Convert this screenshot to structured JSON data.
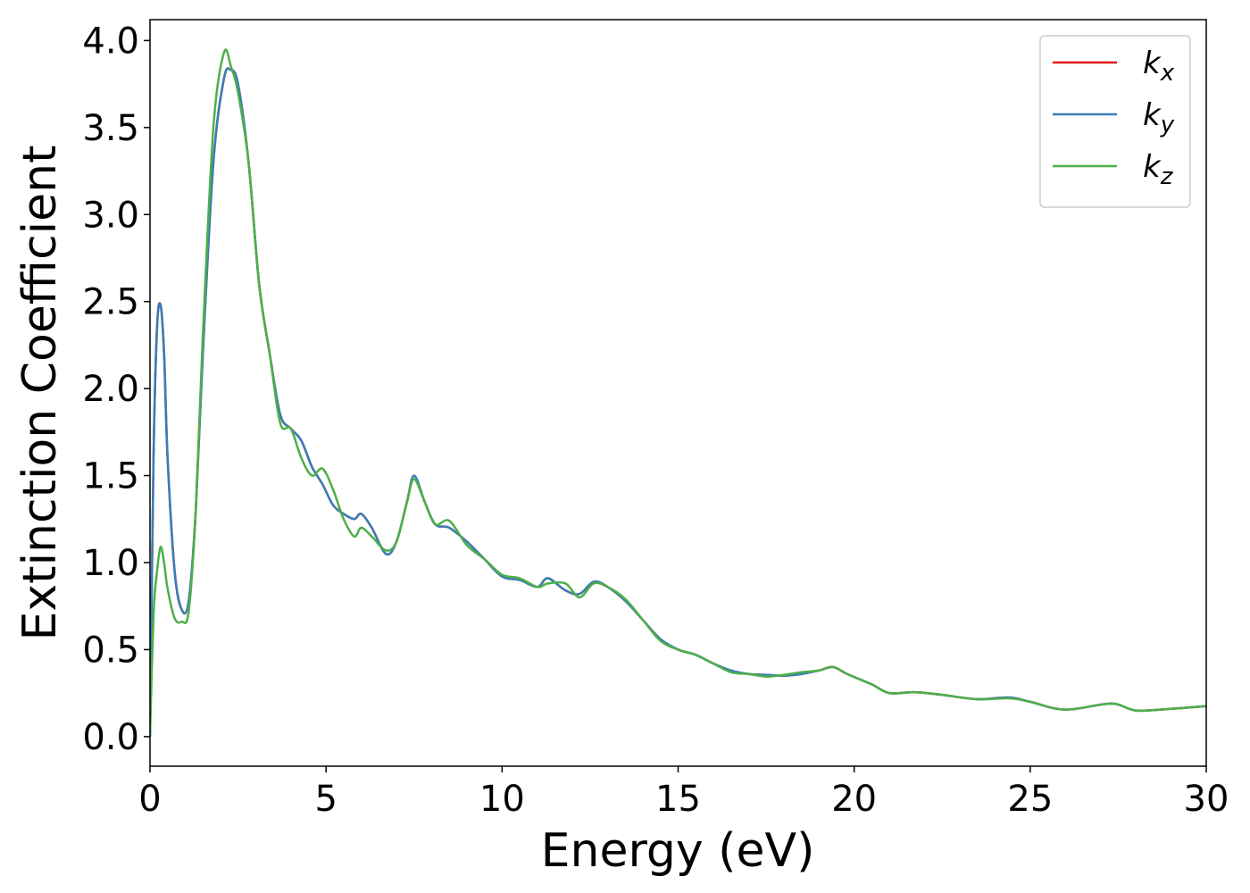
{
  "chart_data": {
    "type": "line",
    "xlabel": "Energy (eV)",
    "ylabel": "Extinction Coefficient",
    "xlim": [
      0,
      30
    ],
    "ylim": [
      -0.17,
      4.12
    ],
    "xticks": [
      0,
      5,
      10,
      15,
      20,
      25,
      30
    ],
    "yticks": [
      {
        "value": 0,
        "label": "0.0"
      },
      {
        "value": 0.5,
        "label": "0.5"
      },
      {
        "value": 1,
        "label": "1.0"
      },
      {
        "value": 1.5,
        "label": "1.5"
      },
      {
        "value": 2,
        "label": "2.0"
      },
      {
        "value": 2.5,
        "label": "2.5"
      },
      {
        "value": 3,
        "label": "3.0"
      },
      {
        "value": 3.5,
        "label": "3.5"
      },
      {
        "value": 4,
        "label": "4.0"
      }
    ],
    "grid": false,
    "legend": "upper right",
    "x": [
      0,
      0.1,
      0.2,
      0.3,
      0.4,
      0.5,
      0.7,
      0.9,
      1.1,
      1.3,
      1.5,
      1.8,
      2.1,
      2.3,
      2.5,
      2.8,
      3.1,
      3.4,
      3.7,
      4.0,
      4.3,
      4.6,
      4.9,
      5.2,
      5.5,
      5.8,
      6.0,
      6.3,
      6.7,
      7.0,
      7.3,
      7.5,
      7.8,
      8.1,
      8.5,
      9.0,
      9.5,
      10.0,
      10.5,
      11.0,
      11.3,
      11.8,
      12.2,
      12.6,
      13.0,
      13.5,
      14.0,
      14.5,
      15.0,
      15.5,
      16.0,
      16.5,
      17.0,
      17.5,
      18.0,
      18.5,
      19.0,
      19.4,
      19.8,
      20.5,
      21.0,
      21.7,
      22.5,
      23.5,
      24.4,
      25.0,
      26.0,
      27.3,
      28.0,
      29.0,
      30.0
    ],
    "series": [
      {
        "name": "kx",
        "color": "#e41a1c",
        "values": [
          0,
          1.6,
          2.35,
          2.48,
          2.2,
          1.6,
          0.95,
          0.73,
          0.78,
          1.3,
          2.2,
          3.3,
          3.78,
          3.83,
          3.75,
          3.3,
          2.6,
          2.2,
          1.85,
          1.77,
          1.7,
          1.55,
          1.45,
          1.33,
          1.28,
          1.25,
          1.28,
          1.2,
          1.05,
          1.12,
          1.35,
          1.5,
          1.35,
          1.22,
          1.2,
          1.12,
          1.02,
          0.92,
          0.9,
          0.86,
          0.91,
          0.84,
          0.82,
          0.89,
          0.86,
          0.78,
          0.67,
          0.56,
          0.5,
          0.47,
          0.42,
          0.38,
          0.36,
          0.355,
          0.35,
          0.36,
          0.38,
          0.4,
          0.36,
          0.3,
          0.25,
          0.255,
          0.24,
          0.215,
          0.225,
          0.2,
          0.155,
          0.19,
          0.15,
          0.16,
          0.175
        ]
      },
      {
        "name": "ky",
        "color": "#377eb8",
        "values": [
          0,
          1.6,
          2.35,
          2.48,
          2.2,
          1.6,
          0.95,
          0.73,
          0.78,
          1.3,
          2.2,
          3.3,
          3.78,
          3.83,
          3.75,
          3.3,
          2.6,
          2.2,
          1.85,
          1.77,
          1.7,
          1.55,
          1.45,
          1.33,
          1.28,
          1.25,
          1.28,
          1.2,
          1.05,
          1.12,
          1.35,
          1.5,
          1.35,
          1.22,
          1.2,
          1.12,
          1.02,
          0.92,
          0.9,
          0.86,
          0.91,
          0.84,
          0.82,
          0.89,
          0.86,
          0.78,
          0.67,
          0.56,
          0.5,
          0.47,
          0.42,
          0.38,
          0.36,
          0.355,
          0.35,
          0.36,
          0.38,
          0.4,
          0.36,
          0.3,
          0.25,
          0.255,
          0.24,
          0.215,
          0.225,
          0.2,
          0.155,
          0.19,
          0.15,
          0.16,
          0.175
        ]
      },
      {
        "name": "kz",
        "color": "#4daf4a",
        "values": [
          0,
          0.7,
          0.95,
          1.09,
          1.0,
          0.85,
          0.68,
          0.66,
          0.72,
          1.3,
          2.3,
          3.5,
          3.93,
          3.85,
          3.7,
          3.3,
          2.6,
          2.2,
          1.8,
          1.77,
          1.6,
          1.5,
          1.54,
          1.42,
          1.25,
          1.15,
          1.2,
          1.15,
          1.07,
          1.12,
          1.35,
          1.48,
          1.35,
          1.22,
          1.24,
          1.1,
          1.02,
          0.93,
          0.91,
          0.86,
          0.88,
          0.88,
          0.8,
          0.88,
          0.86,
          0.79,
          0.67,
          0.55,
          0.5,
          0.47,
          0.42,
          0.37,
          0.36,
          0.345,
          0.355,
          0.37,
          0.38,
          0.4,
          0.36,
          0.3,
          0.25,
          0.255,
          0.24,
          0.215,
          0.22,
          0.2,
          0.155,
          0.19,
          0.15,
          0.16,
          0.175
        ]
      }
    ]
  }
}
